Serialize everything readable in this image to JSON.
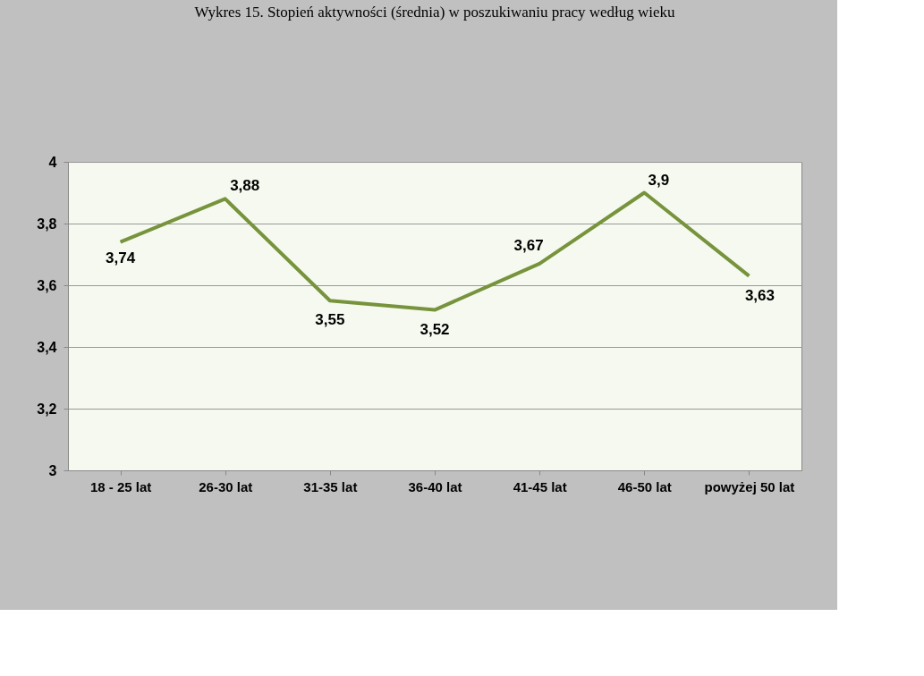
{
  "chart_data": {
    "type": "line",
    "title": "Wykres 15. Stopień aktywności (średnia) w poszukiwaniu pracy według wieku",
    "categories": [
      "18 - 25 lat",
      "26-30 lat",
      "31-35 lat",
      "36-40 lat",
      "41-45 lat",
      "46-50 lat",
      "powyżej 50 lat"
    ],
    "series": [
      {
        "color": "#77933c",
        "values": [
          3.74,
          3.88,
          3.55,
          3.52,
          3.67,
          3.9,
          3.63
        ],
        "value_labels": [
          "3,74",
          "3,88",
          "3,55",
          "3,52",
          "3,67",
          "3,9",
          "3,63"
        ]
      }
    ],
    "ylim": [
      3,
      4
    ],
    "yticks": [
      {
        "value": 3,
        "label": "3"
      },
      {
        "value": 3.2,
        "label": "3,2"
      },
      {
        "value": 3.4,
        "label": "3,4"
      },
      {
        "value": 3.6,
        "label": "3,6"
      },
      {
        "value": 3.8,
        "label": "3,8"
      },
      {
        "value": 4,
        "label": "4"
      }
    ],
    "grid": "y",
    "marker": "none",
    "line_style": "solid"
  }
}
